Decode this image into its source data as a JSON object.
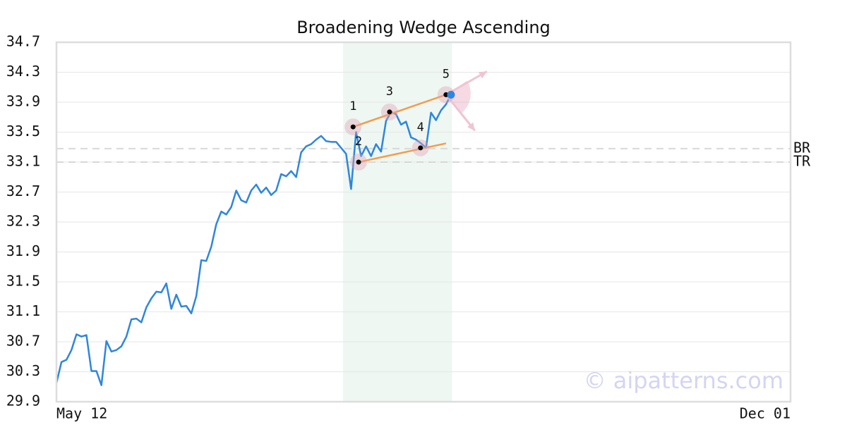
{
  "chart_data": {
    "type": "line",
    "title": "Broadening Wedge Ascending",
    "series": [
      {
        "color": "#2e86de",
        "values": [
          30.15,
          30.43,
          30.46,
          30.59,
          30.8,
          30.77,
          30.79,
          30.31,
          30.31,
          30.12,
          30.71,
          30.57,
          30.59,
          30.64,
          30.77,
          31.0,
          31.01,
          30.96,
          31.16,
          31.28,
          31.37,
          31.36,
          31.48,
          31.14,
          31.33,
          31.17,
          31.18,
          31.08,
          31.31,
          31.79,
          31.78,
          31.97,
          32.27,
          32.44,
          32.4,
          32.5,
          32.72,
          32.59,
          32.56,
          32.72,
          32.8,
          32.69,
          32.76,
          32.66,
          32.72,
          32.94,
          32.91,
          32.98,
          32.9,
          33.23,
          33.31,
          33.34,
          33.4,
          33.45,
          33.38,
          33.37,
          33.37,
          33.29,
          33.21,
          32.74,
          33.5,
          33.18,
          33.31,
          33.18,
          33.34,
          33.24,
          33.65,
          33.77,
          33.74,
          33.6,
          33.64,
          33.43,
          33.4,
          33.35,
          33.29,
          33.76,
          33.66,
          33.79,
          33.87,
          34.0
        ]
      }
    ],
    "xlim": [
      0,
      147
    ],
    "xticks": [
      {
        "value": 0,
        "label": "May 12"
      },
      {
        "value": 147,
        "label": "Dec 01"
      }
    ],
    "ylim": [
      29.9,
      34.7
    ],
    "yticks": [
      29.9,
      30.3,
      30.7,
      31.1,
      31.5,
      31.9,
      32.3,
      32.7,
      33.1,
      33.5,
      33.9,
      34.3,
      34.7
    ],
    "grid": true,
    "highlight": [
      57.4,
      79.2
    ],
    "pattern_points": [
      {
        "label": "1",
        "x": 59.4,
        "y": 33.57
      },
      {
        "label": "2",
        "x": 60.5,
        "y": 33.1
      },
      {
        "label": "3",
        "x": 66.7,
        "y": 33.77
      },
      {
        "label": "4",
        "x": 72.9,
        "y": 33.29
      },
      {
        "label": "5",
        "x": 78.0,
        "y": 34.0
      }
    ],
    "trendlines": [
      {
        "color": "#f39c4a",
        "x": [
          59.4,
          78.0
        ],
        "y": [
          33.57,
          34.0
        ]
      },
      {
        "color": "#f39c4a",
        "x": [
          60.5,
          78.0
        ],
        "y": [
          33.1,
          33.35
        ]
      }
    ],
    "reference_lines": [
      {
        "label": "BR",
        "value": 33.28
      },
      {
        "label": "TR",
        "value": 33.1
      }
    ],
    "watermark": "© aipatterns.com"
  }
}
